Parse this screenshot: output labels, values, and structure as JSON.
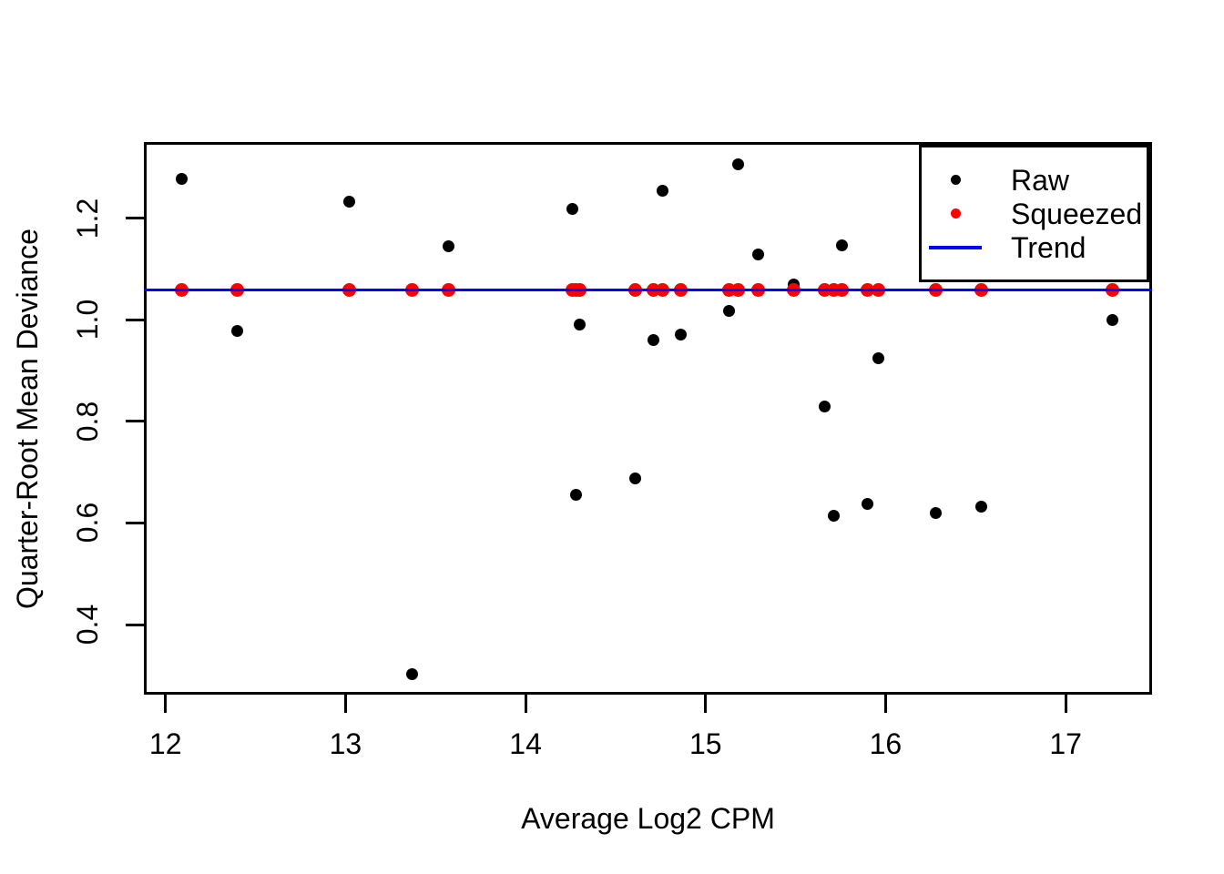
{
  "figure": {
    "background": "#FFFFFF",
    "frame_color": "#000000"
  },
  "chart_data": {
    "type": "scatter",
    "title": "",
    "xlabel": "Average Log2 CPM",
    "ylabel": "Quarter-Root Mean Deviance",
    "xlim": [
      11.88,
      17.48
    ],
    "ylim": [
      0.262,
      1.35
    ],
    "x_ticks": [
      12,
      13,
      14,
      15,
      16,
      17
    ],
    "x_tick_labels": [
      "12",
      "13",
      "14",
      "15",
      "16",
      "17"
    ],
    "y_ticks": [
      0.4,
      0.6,
      0.8,
      1.0,
      1.2
    ],
    "y_tick_labels": [
      "0.4",
      "0.6",
      "0.8",
      "1.0",
      "1.2"
    ],
    "grid": false,
    "legend_position": "topright",
    "legend": {
      "entries": [
        {
          "label": "Raw",
          "marker": "dot",
          "color": "#000000"
        },
        {
          "label": "Squeezed",
          "marker": "dot",
          "color": "#FF0000"
        },
        {
          "label": "Trend",
          "marker": "line",
          "color": "#0000FF"
        }
      ]
    },
    "series": [
      {
        "name": "Raw",
        "type": "scatter",
        "color": "#000000",
        "marker_diameter": 13,
        "points": [
          [
            12.09,
            1.278
          ],
          [
            12.4,
            0.978
          ],
          [
            13.02,
            1.233
          ],
          [
            13.37,
            0.302
          ],
          [
            13.57,
            1.144
          ],
          [
            14.26,
            1.218
          ],
          [
            14.28,
            0.655
          ],
          [
            14.3,
            0.99
          ],
          [
            14.61,
            0.687
          ],
          [
            14.71,
            0.96
          ],
          [
            14.76,
            1.255
          ],
          [
            14.86,
            0.971
          ],
          [
            15.13,
            1.018
          ],
          [
            15.18,
            1.306
          ],
          [
            15.29,
            1.128
          ],
          [
            15.49,
            1.069
          ],
          [
            15.66,
            0.83
          ],
          [
            15.71,
            0.614
          ],
          [
            15.76,
            1.146
          ],
          [
            15.9,
            0.637
          ],
          [
            15.96,
            0.925
          ],
          [
            16.28,
            0.62
          ],
          [
            16.53,
            0.633
          ],
          [
            17.26,
            0.999
          ]
        ]
      },
      {
        "name": "Squeezed",
        "type": "scatter",
        "color": "#FF0000",
        "marker_diameter": 15,
        "points": [
          [
            12.09,
            1.059
          ],
          [
            12.4,
            1.059
          ],
          [
            13.02,
            1.059
          ],
          [
            13.37,
            1.059
          ],
          [
            13.57,
            1.059
          ],
          [
            14.26,
            1.059
          ],
          [
            14.28,
            1.059
          ],
          [
            14.3,
            1.059
          ],
          [
            14.61,
            1.059
          ],
          [
            14.71,
            1.059
          ],
          [
            14.76,
            1.059
          ],
          [
            14.86,
            1.059
          ],
          [
            15.13,
            1.059
          ],
          [
            15.18,
            1.059
          ],
          [
            15.29,
            1.059
          ],
          [
            15.49,
            1.059
          ],
          [
            15.66,
            1.059
          ],
          [
            15.71,
            1.059
          ],
          [
            15.76,
            1.059
          ],
          [
            15.9,
            1.059
          ],
          [
            15.96,
            1.059
          ],
          [
            16.28,
            1.059
          ],
          [
            16.53,
            1.059
          ],
          [
            17.26,
            1.059
          ]
        ]
      },
      {
        "name": "Trend",
        "type": "hline",
        "color": "#0000FF",
        "y": 1.059,
        "line_width": 3
      }
    ]
  }
}
